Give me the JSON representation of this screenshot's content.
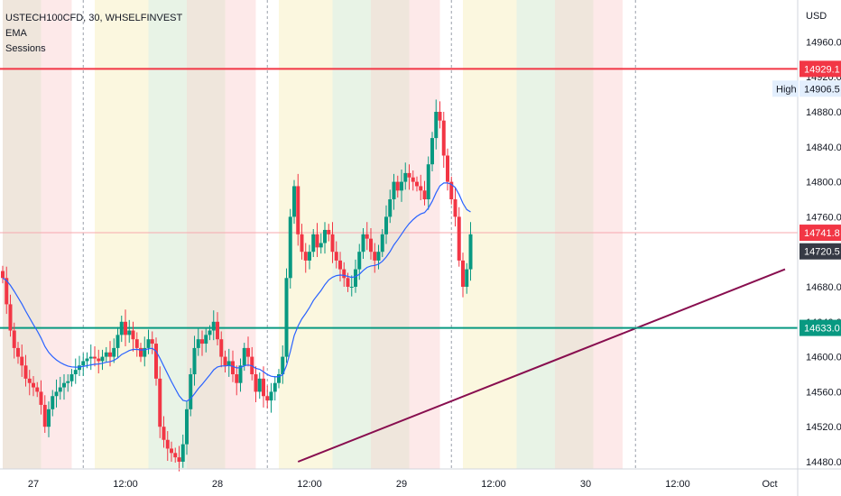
{
  "legend": {
    "symbol": "USTECH100CFD, 30, WHSELFINVEST",
    "indicator_1": "EMA",
    "indicator_2": "Sessions"
  },
  "chart_data": {
    "type": "candlestick",
    "currency": "USD",
    "y_ticks": [
      14480,
      14520,
      14560,
      14600,
      14640,
      14680,
      14720,
      14760,
      14800,
      14840,
      14880,
      14920,
      14960
    ],
    "y_tick_labels": [
      "14480.0",
      "14520.0",
      "14560.0",
      "14600.0",
      "14640.0",
      "14680.0",
      "14720.0",
      "14760.0",
      "14800.0",
      "14840.0",
      "14880.0",
      "14920.0",
      "14960.0"
    ],
    "x_ticks": [
      {
        "label": "27",
        "hour": 0
      },
      {
        "label": "12:00",
        "hour": 12
      },
      {
        "label": "28",
        "hour": 24
      },
      {
        "label": "12:00",
        "hour": 36
      },
      {
        "label": "29",
        "hour": 48
      },
      {
        "label": "12:00",
        "hour": 60
      },
      {
        "label": "30",
        "hour": 72
      },
      {
        "label": "12:00",
        "hour": 84
      },
      {
        "label": "Oct",
        "hour": 96
      }
    ],
    "price_labels": [
      {
        "value": 14929.1,
        "text": "14929.1",
        "color": "#f23645"
      },
      {
        "value": 14906.5,
        "text": "14906.5",
        "color": "#e3effd",
        "text_color": "#131722",
        "tag": "High"
      },
      {
        "value": 14741.8,
        "text": "14741.8",
        "color": "#f23645"
      },
      {
        "value": 14720.5,
        "text": "14720.5",
        "color": "#363a45"
      },
      {
        "value": 14633.0,
        "text": "14633.0",
        "color": "#089981"
      }
    ],
    "resistance_line": 14929.1,
    "support_line": 14633.0,
    "last_price": 14741.8,
    "trend_line": {
      "start": {
        "hour": 34.5,
        "value": 14480
      },
      "end": {
        "hour": 98,
        "value": 14700
      }
    },
    "colors": {
      "up": "#089981",
      "down": "#f23645",
      "ema": "#2962ff",
      "resistance": "#f23645",
      "support": "#089981",
      "trend": "#880e4f"
    },
    "candles_start_hour": -4,
    "candle_interval_hours": 0.5,
    "candles_close": [
      14690,
      14660,
      14630,
      14610,
      14600,
      14590,
      14575,
      14570,
      14565,
      14560,
      14545,
      14520,
      14540,
      14555,
      14560,
      14565,
      14570,
      14572,
      14580,
      14585,
      14590,
      14595,
      14598,
      14600,
      14598,
      14595,
      14600,
      14605,
      14600,
      14610,
      14625,
      14640,
      14625,
      14630,
      14620,
      14610,
      14600,
      14610,
      14620,
      14615,
      14575,
      14520,
      14505,
      14495,
      14490,
      14485,
      14480,
      14500,
      14540,
      14580,
      14610,
      14620,
      14615,
      14625,
      14630,
      14640,
      14620,
      14600,
      14590,
      14595,
      14580,
      14570,
      14590,
      14610,
      14600,
      14580,
      14560,
      14575,
      14555,
      14550,
      14560,
      14570,
      14580,
      14600,
      14690,
      14760,
      14795,
      14740,
      14720,
      14710,
      14720,
      14740,
      14725,
      14730,
      14745,
      14740,
      14720,
      14710,
      14700,
      14690,
      14680,
      14680,
      14700,
      14720,
      14740,
      14735,
      14720,
      14710,
      14720,
      14740,
      14760,
      14780,
      14800,
      14790,
      14800,
      14810,
      14805,
      14800,
      14795,
      14790,
      14780,
      14820,
      14850,
      14880,
      14870,
      14830,
      14800,
      14780,
      14760,
      14710,
      14680,
      14700,
      14740
    ]
  }
}
